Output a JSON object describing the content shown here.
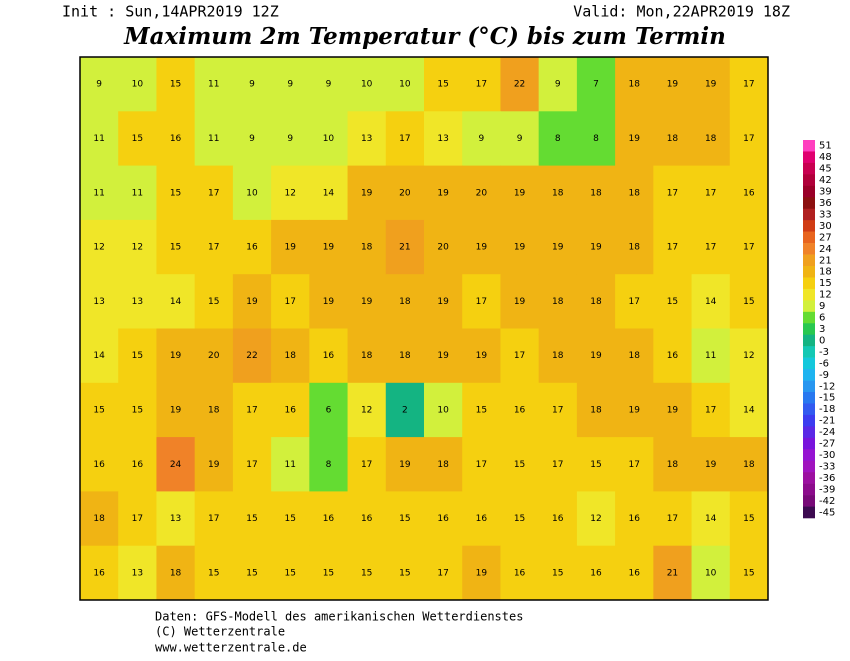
{
  "header": {
    "init": "Init : Sun,14APR2019 12Z",
    "valid": "Valid: Mon,22APR2019 18Z",
    "title": "Maximum 2m Temperatur (°C) bis zum Termin"
  },
  "footer": {
    "lines": [
      "Daten: GFS-Modell des amerikanischen Wetterdienstes",
      "(C) Wetterzentrale",
      "www.wetterzentrale.de"
    ]
  },
  "colorbar": {
    "ticks": [
      51,
      48,
      45,
      42,
      39,
      36,
      33,
      30,
      27,
      24,
      21,
      18,
      15,
      12,
      9,
      6,
      3,
      0,
      -3,
      -6,
      -9,
      -12,
      -15,
      -18,
      -21,
      -24,
      -27,
      -30,
      -33,
      -36,
      -39,
      -42,
      -45
    ],
    "colors": [
      "#ff3fbf",
      "#e0006f",
      "#c80050",
      "#b0003a",
      "#9a0028",
      "#8c1010",
      "#b02020",
      "#d03c14",
      "#e8641e",
      "#f08228",
      "#f0a01e",
      "#f0b414",
      "#f5d010",
      "#f0e628",
      "#d2f03c",
      "#64dc32",
      "#28c850",
      "#14b482",
      "#14c8b4",
      "#14c8dc",
      "#1eb4f0",
      "#2896f0",
      "#2878f0",
      "#325af0",
      "#3c3cf0",
      "#5a28e6",
      "#7814dc",
      "#9614d2",
      "#a014be",
      "#9c10a0",
      "#8c0c8c",
      "#780a78",
      "#3c0a50"
    ]
  },
  "map": {
    "values": [
      [
        9,
        10,
        15,
        11,
        9,
        9,
        9,
        10,
        10,
        15,
        17,
        22,
        9,
        7,
        18,
        19,
        19,
        17
      ],
      [
        11,
        15,
        16,
        11,
        9,
        9,
        10,
        13,
        17,
        13,
        9,
        9,
        8,
        8,
        19,
        18,
        18,
        17
      ],
      [
        11,
        11,
        15,
        17,
        10,
        12,
        14,
        19,
        20,
        19,
        20,
        19,
        18,
        18,
        18,
        17,
        17,
        16
      ],
      [
        12,
        12,
        15,
        17,
        16,
        19,
        19,
        18,
        21,
        20,
        19,
        19,
        19,
        19,
        18,
        17,
        17,
        17
      ],
      [
        13,
        13,
        14,
        15,
        19,
        17,
        19,
        19,
        18,
        19,
        17,
        19,
        18,
        18,
        17,
        15,
        14,
        15
      ],
      [
        14,
        15,
        19,
        20,
        22,
        18,
        16,
        18,
        18,
        19,
        19,
        17,
        18,
        19,
        18,
        16,
        11,
        12
      ],
      [
        15,
        15,
        19,
        18,
        17,
        16,
        6,
        12,
        2,
        10,
        15,
        16,
        17,
        18,
        19,
        19,
        17,
        14
      ],
      [
        16,
        16,
        24,
        19,
        17,
        11,
        8,
        17,
        19,
        18,
        17,
        15,
        17,
        15,
        17,
        18,
        19,
        18
      ],
      [
        18,
        17,
        13,
        17,
        15,
        15,
        16,
        16,
        15,
        16,
        16,
        15,
        16,
        12,
        16,
        17,
        14,
        15
      ],
      [
        16,
        13,
        18,
        15,
        15,
        15,
        15,
        15,
        15,
        17,
        19,
        16,
        15,
        16,
        16,
        21,
        10,
        15
      ]
    ]
  }
}
